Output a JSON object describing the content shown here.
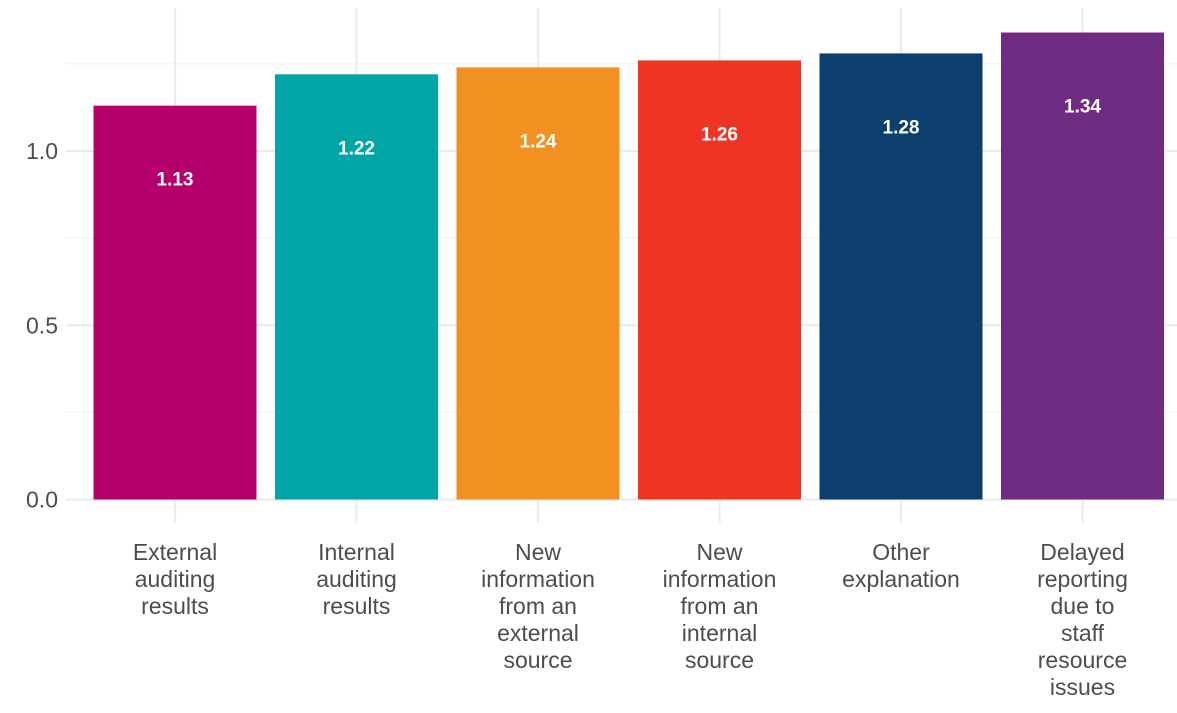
{
  "chart_data": {
    "type": "bar",
    "categories": [
      [
        "External",
        "auditing",
        "results"
      ],
      [
        "Internal",
        "auditing",
        "results"
      ],
      [
        "New",
        "information",
        "from an",
        "external",
        "source"
      ],
      [
        "New",
        "information",
        "from an",
        "internal",
        "source"
      ],
      [
        "Other",
        "explanation"
      ],
      [
        "Delayed",
        "reporting",
        "due to",
        "staff",
        "resource",
        "issues"
      ]
    ],
    "values": [
      1.13,
      1.22,
      1.24,
      1.26,
      1.28,
      1.34
    ],
    "value_labels": [
      "1.13",
      "1.22",
      "1.24",
      "1.26",
      "1.28",
      "1.34"
    ],
    "colors": [
      "#b5006b",
      "#00a5a6",
      "#f29120",
      "#ee3524",
      "#0c3e6e",
      "#6f2a82"
    ],
    "ylim": [
      0,
      1.34
    ],
    "yticks": [
      0.0,
      0.5,
      1.0
    ],
    "ytick_labels": [
      "0.0",
      "0.5",
      "1.0"
    ],
    "grid": true,
    "legend": "none",
    "title": "",
    "xlabel": "",
    "ylabel": ""
  }
}
